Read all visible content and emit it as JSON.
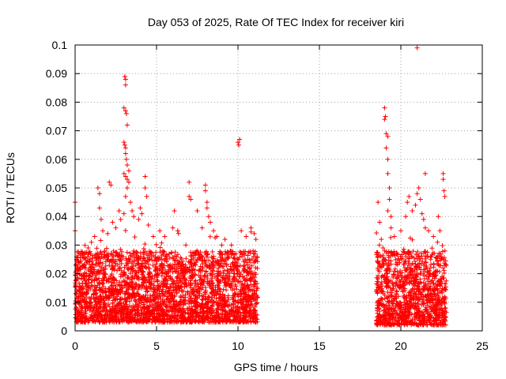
{
  "chart_data": {
    "type": "scatter",
    "title": "Day 053 of 2025, Rate Of TEC Index for receiver kiri",
    "xlabel": "GPS time / hours",
    "ylabel": "ROTI / TECUs",
    "xlim": [
      0,
      25
    ],
    "ylim": [
      0,
      0.1
    ],
    "x_ticks": [
      0,
      5,
      10,
      15,
      20,
      25
    ],
    "x_tick_labels": [
      "0",
      "5",
      "10",
      "15",
      "20",
      "25"
    ],
    "y_ticks": [
      0,
      0.01,
      0.02,
      0.03,
      0.04,
      0.05,
      0.06,
      0.07,
      0.08,
      0.09,
      0.1
    ],
    "y_tick_labels": [
      "0",
      "0.01",
      "0.02",
      "0.03",
      "0.04",
      "0.05",
      "0.06",
      "0.07",
      "0.08",
      "0.09",
      "0.1"
    ],
    "grid": true,
    "marker": "+",
    "series": [
      {
        "name": "ROTI",
        "color": "#ff0000",
        "segments": [
          {
            "x_range": [
              0.0,
              11.2
            ],
            "baseline_min": 0.003,
            "baseline_max": 0.028
          },
          {
            "x_range": [
              18.5,
              22.8
            ],
            "baseline_min": 0.002,
            "baseline_max": 0.028
          }
        ],
        "points": [
          {
            "x": 0.0,
            "y": 0.045
          },
          {
            "x": 0.0,
            "y": 0.035
          },
          {
            "x": 0.1,
            "y": 0.025
          },
          {
            "x": 0.1,
            "y": 0.018
          },
          {
            "x": 0.2,
            "y": 0.012
          },
          {
            "x": 0.2,
            "y": 0.006
          },
          {
            "x": 0.5,
            "y": 0.027
          },
          {
            "x": 0.8,
            "y": 0.029
          },
          {
            "x": 1.0,
            "y": 0.031
          },
          {
            "x": 1.2,
            "y": 0.033
          },
          {
            "x": 1.4,
            "y": 0.05
          },
          {
            "x": 1.5,
            "y": 0.048
          },
          {
            "x": 1.5,
            "y": 0.043
          },
          {
            "x": 1.6,
            "y": 0.039
          },
          {
            "x": 1.7,
            "y": 0.035
          },
          {
            "x": 2.0,
            "y": 0.034
          },
          {
            "x": 2.1,
            "y": 0.052
          },
          {
            "x": 2.2,
            "y": 0.051
          },
          {
            "x": 2.3,
            "y": 0.038
          },
          {
            "x": 2.5,
            "y": 0.036
          },
          {
            "x": 2.7,
            "y": 0.042
          },
          {
            "x": 2.8,
            "y": 0.039
          },
          {
            "x": 3.0,
            "y": 0.041
          },
          {
            "x": 3.05,
            "y": 0.089
          },
          {
            "x": 3.1,
            "y": 0.088
          },
          {
            "x": 3.1,
            "y": 0.086
          },
          {
            "x": 3.0,
            "y": 0.078
          },
          {
            "x": 3.1,
            "y": 0.077
          },
          {
            "x": 3.15,
            "y": 0.076
          },
          {
            "x": 3.2,
            "y": 0.072
          },
          {
            "x": 3.0,
            "y": 0.066
          },
          {
            "x": 3.05,
            "y": 0.065
          },
          {
            "x": 3.1,
            "y": 0.064
          },
          {
            "x": 3.1,
            "y": 0.062
          },
          {
            "x": 3.15,
            "y": 0.06
          },
          {
            "x": 3.2,
            "y": 0.058
          },
          {
            "x": 3.0,
            "y": 0.055
          },
          {
            "x": 3.1,
            "y": 0.054
          },
          {
            "x": 3.2,
            "y": 0.053
          },
          {
            "x": 3.3,
            "y": 0.056
          },
          {
            "x": 3.3,
            "y": 0.052
          },
          {
            "x": 3.2,
            "y": 0.05
          },
          {
            "x": 3.1,
            "y": 0.047
          },
          {
            "x": 3.4,
            "y": 0.045
          },
          {
            "x": 3.5,
            "y": 0.042
          },
          {
            "x": 3.6,
            "y": 0.04
          },
          {
            "x": 3.9,
            "y": 0.039
          },
          {
            "x": 4.0,
            "y": 0.043
          },
          {
            "x": 4.1,
            "y": 0.041
          },
          {
            "x": 4.3,
            "y": 0.054
          },
          {
            "x": 4.3,
            "y": 0.05
          },
          {
            "x": 4.4,
            "y": 0.047
          },
          {
            "x": 4.5,
            "y": 0.037
          },
          {
            "x": 4.8,
            "y": 0.033
          },
          {
            "x": 5.2,
            "y": 0.035
          },
          {
            "x": 5.5,
            "y": 0.033
          },
          {
            "x": 6.0,
            "y": 0.036
          },
          {
            "x": 6.1,
            "y": 0.042
          },
          {
            "x": 6.3,
            "y": 0.035
          },
          {
            "x": 6.8,
            "y": 0.03
          },
          {
            "x": 7.0,
            "y": 0.052
          },
          {
            "x": 7.0,
            "y": 0.047
          },
          {
            "x": 7.1,
            "y": 0.046
          },
          {
            "x": 7.5,
            "y": 0.042
          },
          {
            "x": 7.8,
            "y": 0.036
          },
          {
            "x": 8.0,
            "y": 0.051
          },
          {
            "x": 8.0,
            "y": 0.049
          },
          {
            "x": 8.1,
            "y": 0.045
          },
          {
            "x": 8.1,
            "y": 0.043
          },
          {
            "x": 8.2,
            "y": 0.04
          },
          {
            "x": 8.3,
            "y": 0.038
          },
          {
            "x": 8.5,
            "y": 0.035
          },
          {
            "x": 8.7,
            "y": 0.033
          },
          {
            "x": 9.0,
            "y": 0.03
          },
          {
            "x": 9.2,
            "y": 0.032
          },
          {
            "x": 9.6,
            "y": 0.03
          },
          {
            "x": 10.0,
            "y": 0.066
          },
          {
            "x": 10.05,
            "y": 0.065
          },
          {
            "x": 10.1,
            "y": 0.067
          },
          {
            "x": 10.2,
            "y": 0.035
          },
          {
            "x": 10.5,
            "y": 0.033
          },
          {
            "x": 10.8,
            "y": 0.036
          },
          {
            "x": 11.0,
            "y": 0.034
          },
          {
            "x": 11.1,
            "y": 0.032
          },
          {
            "x": 18.6,
            "y": 0.045
          },
          {
            "x": 18.7,
            "y": 0.038
          },
          {
            "x": 18.8,
            "y": 0.032
          },
          {
            "x": 18.9,
            "y": 0.029
          },
          {
            "x": 19.0,
            "y": 0.078
          },
          {
            "x": 19.05,
            "y": 0.075
          },
          {
            "x": 19.0,
            "y": 0.074
          },
          {
            "x": 19.1,
            "y": 0.069
          },
          {
            "x": 19.2,
            "y": 0.068
          },
          {
            "x": 19.1,
            "y": 0.064
          },
          {
            "x": 19.2,
            "y": 0.06
          },
          {
            "x": 19.2,
            "y": 0.055
          },
          {
            "x": 19.3,
            "y": 0.05
          },
          {
            "x": 19.3,
            "y": 0.046
          },
          {
            "x": 19.2,
            "y": 0.042
          },
          {
            "x": 19.4,
            "y": 0.04
          },
          {
            "x": 19.4,
            "y": 0.036
          },
          {
            "x": 19.6,
            "y": 0.033
          },
          {
            "x": 20.0,
            "y": 0.035
          },
          {
            "x": 20.3,
            "y": 0.04
          },
          {
            "x": 20.4,
            "y": 0.045
          },
          {
            "x": 20.5,
            "y": 0.047
          },
          {
            "x": 20.7,
            "y": 0.042
          },
          {
            "x": 20.9,
            "y": 0.044
          },
          {
            "x": 21.0,
            "y": 0.099
          },
          {
            "x": 21.0,
            "y": 0.048
          },
          {
            "x": 21.1,
            "y": 0.05
          },
          {
            "x": 21.2,
            "y": 0.046
          },
          {
            "x": 21.3,
            "y": 0.041
          },
          {
            "x": 21.4,
            "y": 0.039
          },
          {
            "x": 21.5,
            "y": 0.055
          },
          {
            "x": 21.5,
            "y": 0.036
          },
          {
            "x": 21.7,
            "y": 0.035
          },
          {
            "x": 22.0,
            "y": 0.033
          },
          {
            "x": 22.3,
            "y": 0.04
          },
          {
            "x": 22.4,
            "y": 0.035
          },
          {
            "x": 22.6,
            "y": 0.055
          },
          {
            "x": 22.6,
            "y": 0.053
          },
          {
            "x": 22.65,
            "y": 0.049
          },
          {
            "x": 22.7,
            "y": 0.047
          }
        ]
      }
    ]
  }
}
